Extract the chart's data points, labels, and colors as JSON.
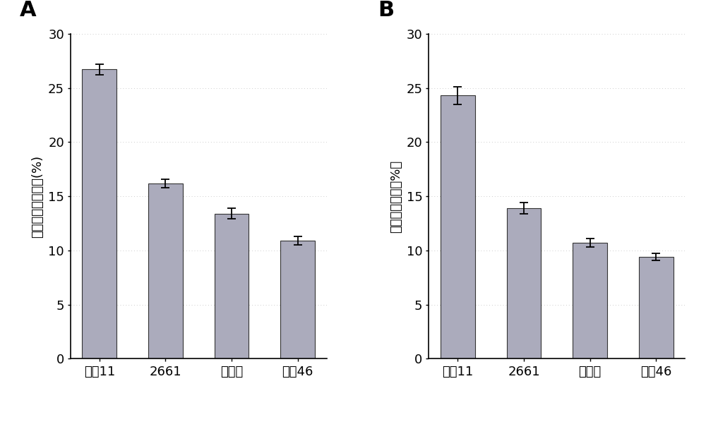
{
  "panel_A": {
    "label": "A",
    "categories": [
      "南京11",
      "2661",
      "魔王谷",
      "南糴46"
    ],
    "values": [
      26.7,
      16.2,
      13.4,
      10.9
    ],
    "errors": [
      0.5,
      0.4,
      0.5,
      0.4
    ],
    "ylabel": "表观直链淠粉含量(%)",
    "ylim": [
      0,
      30
    ],
    "yticks": [
      0,
      5,
      10,
      15,
      20,
      25,
      30
    ]
  },
  "panel_B": {
    "label": "B",
    "categories": [
      "南京11",
      "2661",
      "魔王谷",
      "南糴46"
    ],
    "values": [
      24.3,
      13.9,
      10.7,
      9.4
    ],
    "errors": [
      0.8,
      0.5,
      0.4,
      0.3
    ],
    "ylabel": "直链淠粉含量（%）",
    "ylim": [
      0,
      30
    ],
    "yticks": [
      0,
      5,
      10,
      15,
      20,
      25,
      30
    ]
  },
  "bar_color": "#ababbc",
  "bar_edgecolor": "#333333",
  "bar_width": 0.52,
  "elinewidth": 1.3,
  "ecapsize": 4,
  "grid_color": "#cccccc",
  "background_color": "#ffffff",
  "tick_fontsize": 13,
  "ylabel_fontsize": 13,
  "panel_label_fontsize": 22
}
